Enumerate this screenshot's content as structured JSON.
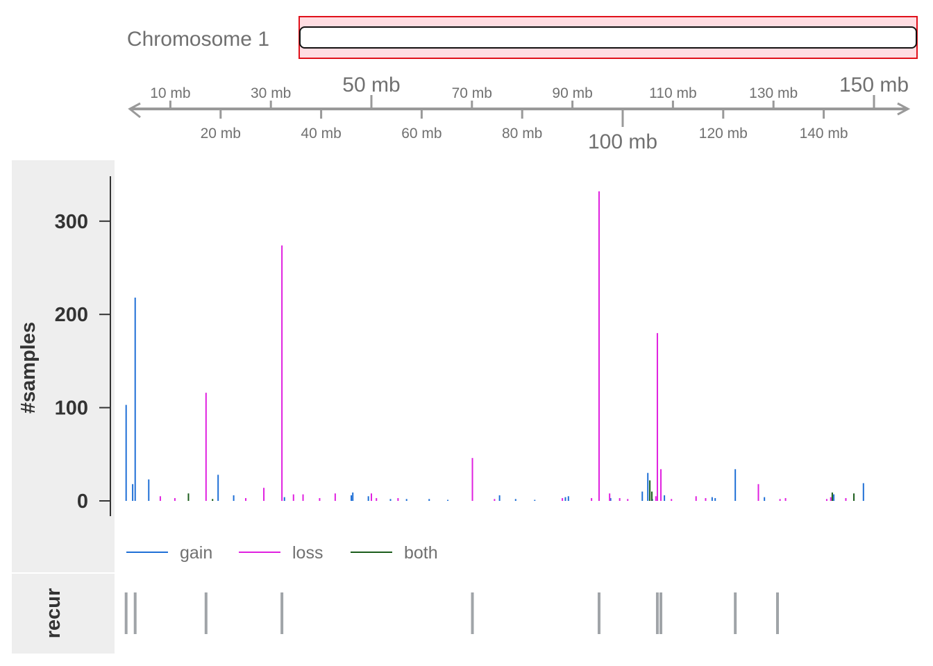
{
  "chart_data": {
    "type": "bar",
    "title": "Chromosome 1",
    "ylabel": "#samples",
    "recur_label": "recur",
    "ylim": [
      0,
      335
    ],
    "y_ticks": [
      0,
      100,
      200,
      300
    ],
    "ideogram": {
      "range_mb": [
        0,
        158
      ],
      "view_mb": [
        0,
        158
      ]
    },
    "genome_axis": {
      "range_mb": [
        0,
        158
      ],
      "ticks_above": [
        {
          "mb": 10,
          "label": "10 mb",
          "size": "small"
        },
        {
          "mb": 30,
          "label": "30 mb",
          "size": "small"
        },
        {
          "mb": 50,
          "label": "50 mb",
          "size": "big"
        },
        {
          "mb": 70,
          "label": "70 mb",
          "size": "small"
        },
        {
          "mb": 90,
          "label": "90 mb",
          "size": "small"
        },
        {
          "mb": 110,
          "label": "110 mb",
          "size": "small"
        },
        {
          "mb": 130,
          "label": "130 mb",
          "size": "small"
        },
        {
          "mb": 150,
          "label": "150 mb",
          "size": "big"
        }
      ],
      "ticks_below": [
        {
          "mb": 20,
          "label": "20 mb",
          "size": "small"
        },
        {
          "mb": 40,
          "label": "40 mb",
          "size": "small"
        },
        {
          "mb": 60,
          "label": "60 mb",
          "size": "small"
        },
        {
          "mb": 80,
          "label": "80 mb",
          "size": "small"
        },
        {
          "mb": 100,
          "label": "100 mb",
          "size": "big"
        },
        {
          "mb": 120,
          "label": "120 mb",
          "size": "small"
        },
        {
          "mb": 140,
          "label": "140 mb",
          "size": "small"
        }
      ]
    },
    "legend": {
      "position": "bottom-left"
    },
    "colors": {
      "gain": "#1f6fd6",
      "loss": "#e020e0",
      "both": "#1a5c1a",
      "recur": "#a0a4a8",
      "axis": "#999999"
    },
    "series": [
      {
        "name": "gain",
        "points": [
          [
            1.2,
            103
          ],
          [
            2.5,
            18
          ],
          [
            3.0,
            218
          ],
          [
            5.7,
            23
          ],
          [
            19.5,
            28
          ],
          [
            22.6,
            6
          ],
          [
            32.7,
            4
          ],
          [
            46.0,
            6
          ],
          [
            46.3,
            9
          ],
          [
            49.4,
            5
          ],
          [
            53.8,
            2
          ],
          [
            57.0,
            2
          ],
          [
            61.5,
            2
          ],
          [
            65.2,
            1
          ],
          [
            75.5,
            6
          ],
          [
            78.7,
            2
          ],
          [
            82.5,
            1
          ],
          [
            88.6,
            4
          ],
          [
            89.2,
            5
          ],
          [
            97.6,
            3
          ],
          [
            103.9,
            10
          ],
          [
            105.0,
            30
          ],
          [
            105.9,
            2
          ],
          [
            108.3,
            6
          ],
          [
            117.8,
            4
          ],
          [
            118.4,
            3
          ],
          [
            122.4,
            34
          ],
          [
            128.2,
            4
          ],
          [
            142.0,
            7
          ],
          [
            147.9,
            19
          ]
        ]
      },
      {
        "name": "loss",
        "points": [
          [
            8.0,
            5
          ],
          [
            10.9,
            3
          ],
          [
            17.1,
            116
          ],
          [
            25.0,
            3
          ],
          [
            28.6,
            14
          ],
          [
            32.2,
            274
          ],
          [
            34.5,
            7
          ],
          [
            36.4,
            7
          ],
          [
            39.7,
            3
          ],
          [
            42.8,
            8
          ],
          [
            50.0,
            8
          ],
          [
            51.0,
            3
          ],
          [
            55.3,
            3
          ],
          [
            70.1,
            46
          ],
          [
            74.5,
            2
          ],
          [
            88.0,
            3
          ],
          [
            93.8,
            3
          ],
          [
            95.3,
            332
          ],
          [
            97.4,
            8
          ],
          [
            99.4,
            3
          ],
          [
            101.0,
            2
          ],
          [
            106.6,
            5
          ],
          [
            106.9,
            180
          ],
          [
            107.6,
            34
          ],
          [
            109.7,
            2
          ],
          [
            114.6,
            5
          ],
          [
            116.5,
            3
          ],
          [
            127.0,
            18
          ],
          [
            131.3,
            2
          ],
          [
            132.4,
            3
          ],
          [
            140.6,
            2
          ],
          [
            141.4,
            4
          ],
          [
            144.4,
            3
          ]
        ]
      },
      {
        "name": "both",
        "points": [
          [
            13.6,
            8
          ],
          [
            18.4,
            2
          ],
          [
            105.4,
            22
          ],
          [
            105.8,
            10
          ],
          [
            141.7,
            9
          ],
          [
            146.0,
            8
          ]
        ]
      }
    ],
    "recur_positions_mb": [
      1.2,
      3.0,
      17.1,
      32.2,
      70.1,
      95.3,
      106.9,
      107.6,
      122.4,
      130.8
    ]
  }
}
